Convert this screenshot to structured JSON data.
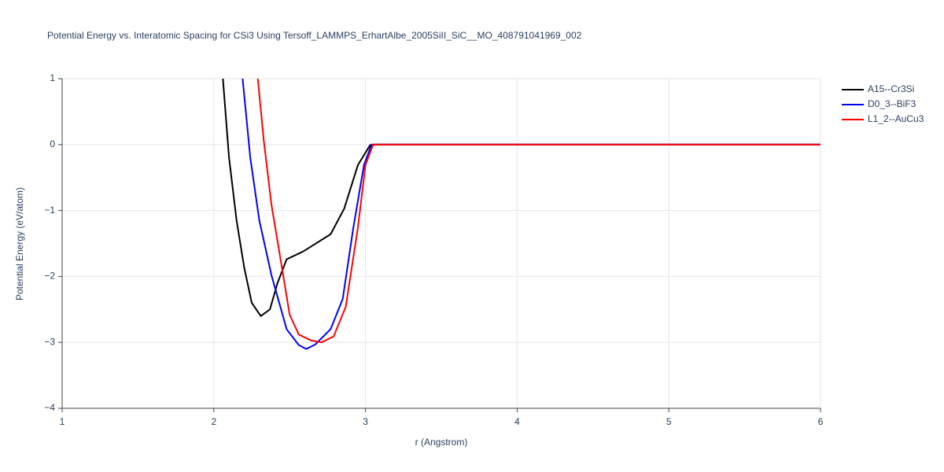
{
  "chart_data": {
    "type": "line",
    "title": "Potential Energy vs. Interatomic Spacing for CSi3 Using Tersoff_LAMMPS_ErhartAlbe_2005SiII_SiC__MO_408791041969_002",
    "x_label": "r (Angstrom)",
    "y_label": "Potential Energy (eV/atom)",
    "xlim": [
      1,
      6
    ],
    "ylim": [
      -4,
      1
    ],
    "xticks": [
      1,
      2,
      3,
      4,
      5,
      6
    ],
    "yticks": [
      {
        "value": -4,
        "label": "−4"
      },
      {
        "value": -3,
        "label": "−3"
      },
      {
        "value": -2,
        "label": "−2"
      },
      {
        "value": -1,
        "label": "−1"
      },
      0,
      1
    ],
    "grid": true,
    "legend": "top-right",
    "series": [
      {
        "name": "A15--Cr3Si",
        "color": "#000000",
        "x": [
          2.06,
          2.1,
          2.15,
          2.2,
          2.25,
          2.31,
          2.37,
          2.42,
          2.48,
          2.59,
          2.77,
          2.86,
          2.95,
          3.03,
          3.08,
          6
        ],
        "values": [
          1,
          -0.19,
          -1.15,
          -1.86,
          -2.4,
          -2.6,
          -2.5,
          -2.1,
          -1.74,
          -1.62,
          -1.36,
          -0.97,
          -0.31,
          -0.01,
          0,
          0
        ]
      },
      {
        "name": "D0_3--BiF3",
        "color": "#0000ff",
        "x": [
          2.19,
          2.24,
          2.3,
          2.38,
          2.48,
          2.56,
          2.61,
          2.67,
          2.77,
          2.85,
          2.92,
          2.99,
          3.04,
          3.08,
          6
        ],
        "values": [
          1,
          -0.19,
          -1.15,
          -1.98,
          -2.8,
          -3.04,
          -3.1,
          -3.03,
          -2.8,
          -2.34,
          -1.26,
          -0.31,
          0,
          0,
          0
        ]
      },
      {
        "name": "L1_2--AuCu3",
        "color": "#ff0000",
        "x": [
          2.29,
          2.33,
          2.38,
          2.44,
          2.5,
          2.56,
          2.64,
          2.71,
          2.79,
          2.87,
          2.95,
          3.0,
          3.05,
          3.08,
          6
        ],
        "values": [
          1,
          0.05,
          -0.91,
          -1.74,
          -2.58,
          -2.88,
          -2.97,
          -3.0,
          -2.91,
          -2.46,
          -1.26,
          -0.31,
          0,
          0,
          0
        ]
      }
    ]
  }
}
